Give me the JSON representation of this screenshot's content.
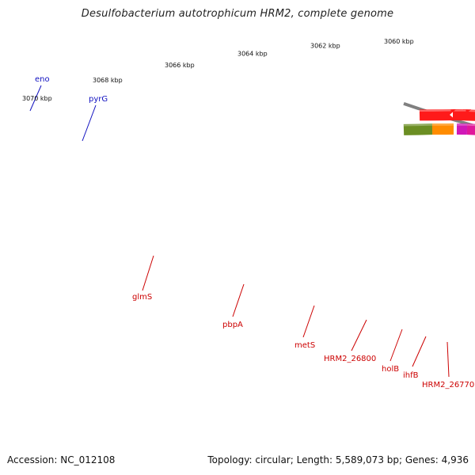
{
  "title": "Desulfobacterium autotrophicum HRM2, complete genome",
  "footer": {
    "accession": "Accession: NC_012108",
    "stats": "Topology: circular; Length: 5,589,073 bp; Genes: 4,936"
  },
  "colors": {
    "backbone": "#808080",
    "forward_tick": "#1a7a1a",
    "reverse_tick": "#1a7a1a",
    "forward_label": "#1010c0",
    "reverse_label": "#cc0000"
  },
  "scale_labels": [
    "3070 kbp",
    "3068 kbp",
    "3066 kbp",
    "3064 kbp",
    "3062 kbp",
    "3060 kbp"
  ],
  "genes": [
    {
      "name": "eno",
      "strand": "+",
      "color": "#20c0c0"
    },
    {
      "name": "pyrG",
      "strand": "+",
      "color": "#1ab0e8"
    },
    {
      "name": "glmS",
      "strand": "-",
      "color": "#ff1a1a"
    },
    {
      "name": "pbpA",
      "strand": "-",
      "color": "#ff1a1a"
    },
    {
      "name": "metS",
      "strand": "-",
      "color": "#ff1a1a"
    },
    {
      "name": "HRM2_26800",
      "strand": "-",
      "color": "#ff1a1a"
    },
    {
      "name": "holB",
      "strand": "-",
      "color": "#ff1a1a"
    },
    {
      "name": "ihfB",
      "strand": "-",
      "color": "#ff1a1a"
    },
    {
      "name": "HRM2_26770",
      "strand": "-",
      "color": "#ff1a1a"
    }
  ]
}
